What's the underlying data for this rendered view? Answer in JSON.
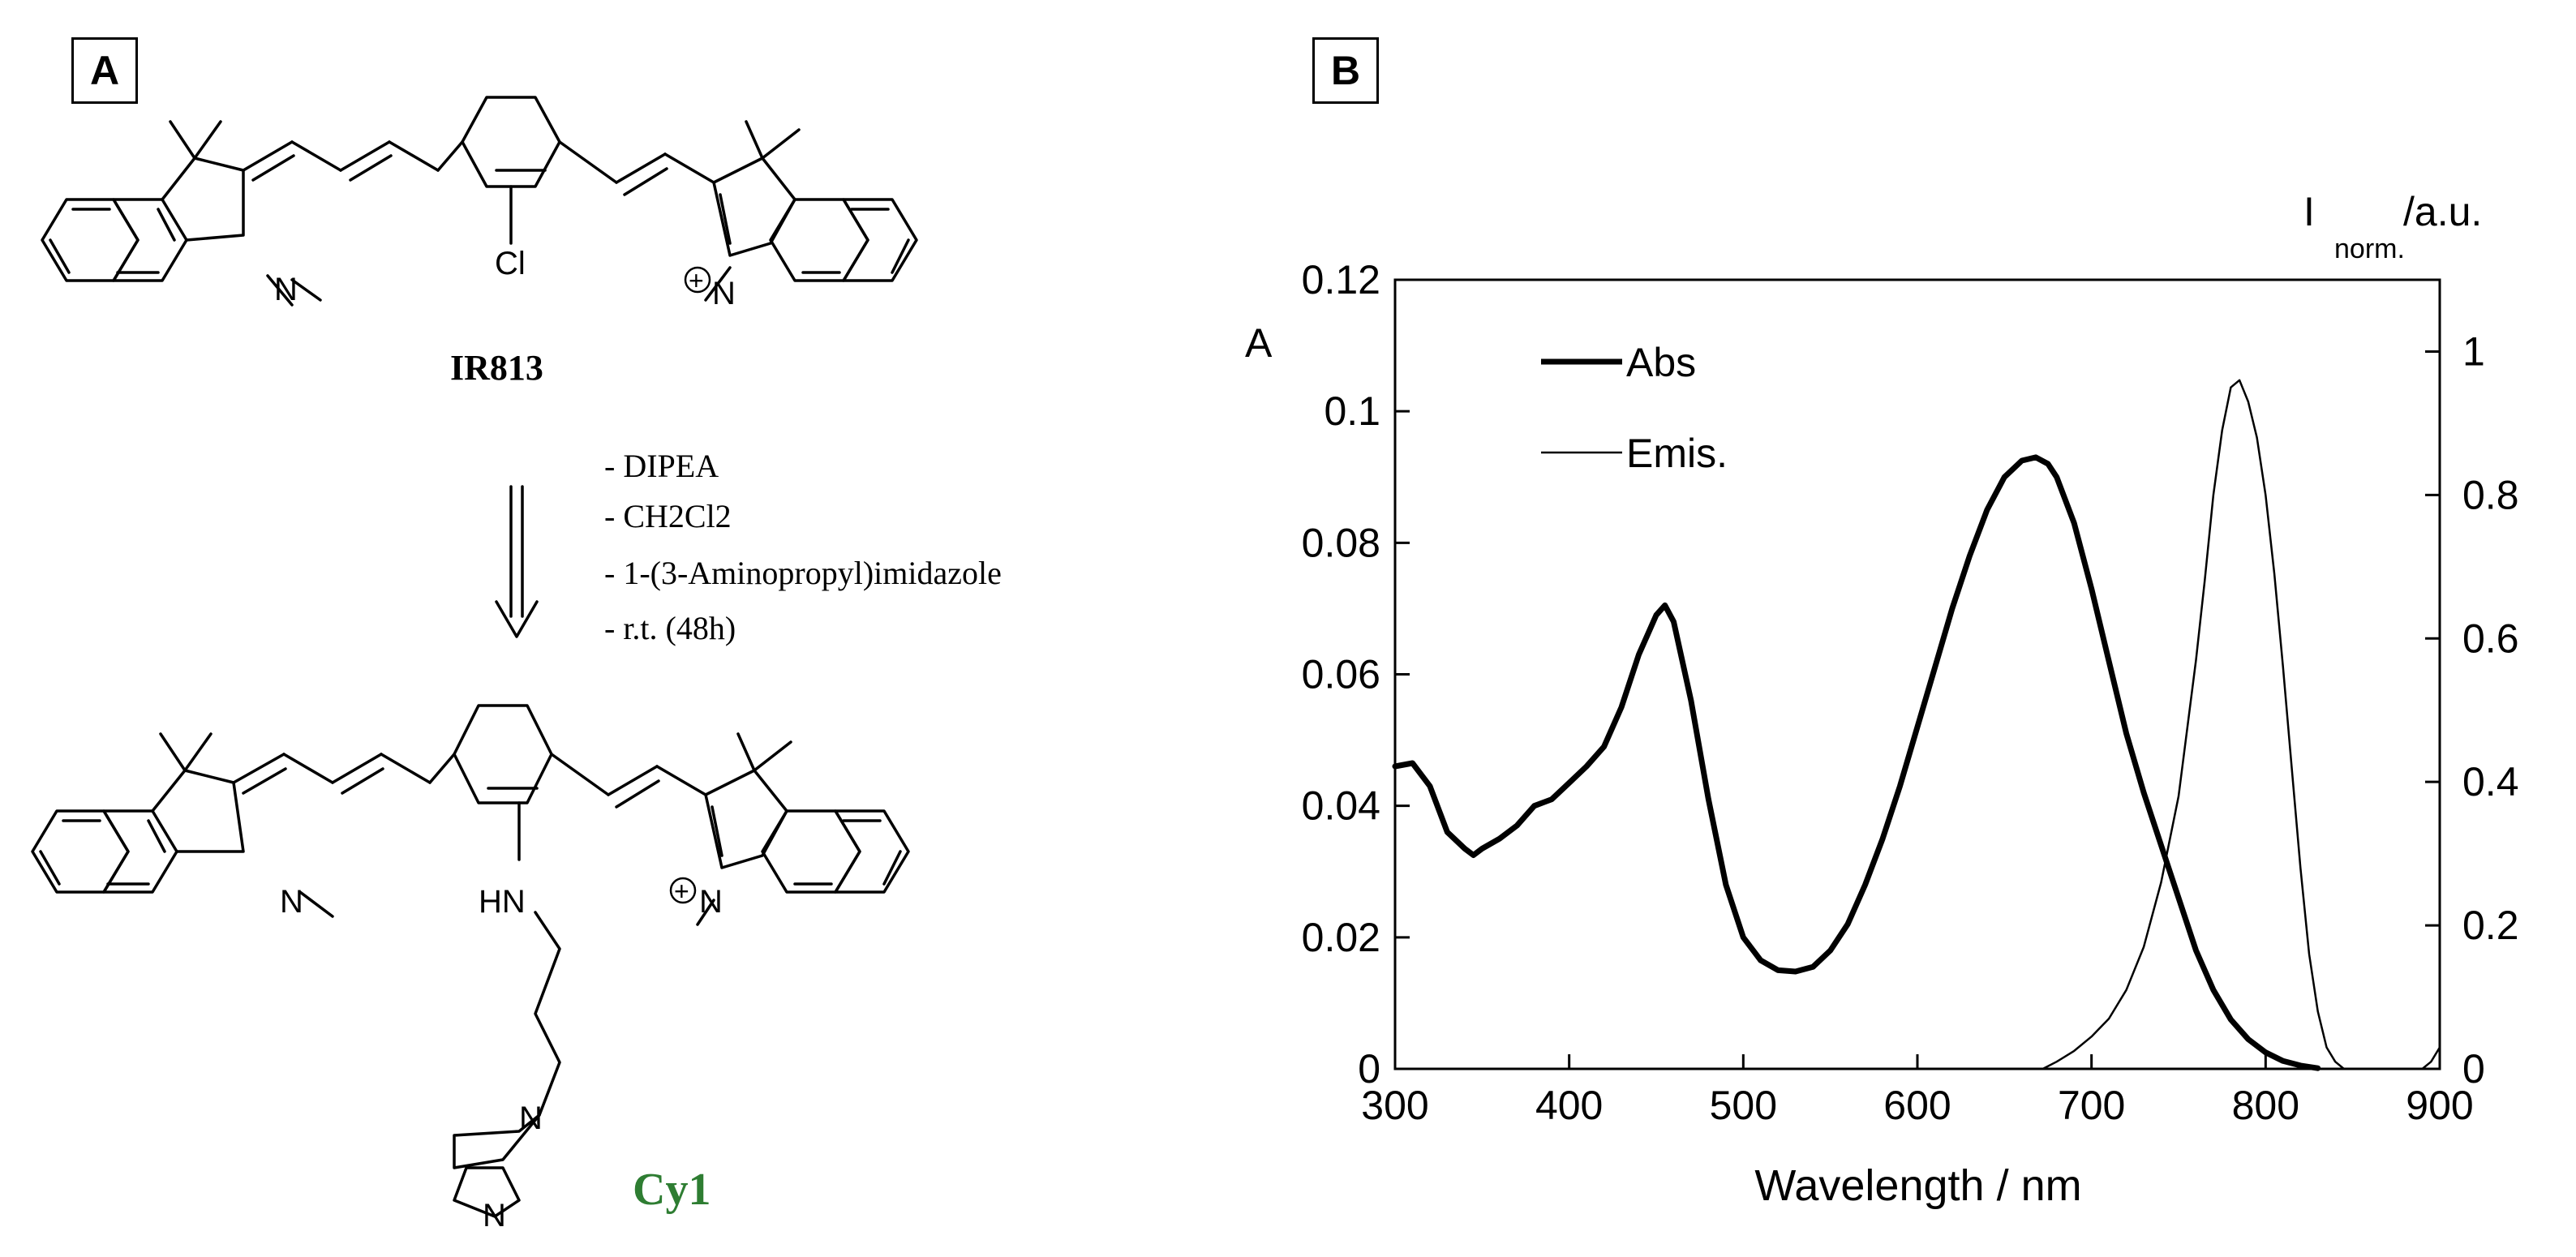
{
  "panel_a": {
    "label": "A",
    "reactant_name": "IR813",
    "product_name": "Cy1",
    "conditions": [
      "- DIPEA",
      "- CH2Cl2",
      "- 1-(3-Aminopropyl)imidazole",
      "- r.t. (48h)"
    ],
    "atoms": {
      "chloro": "Cl",
      "n": "N",
      "amine": "HN",
      "imidazole_n": "N",
      "charge": "+"
    },
    "colors": {
      "product_name": "#2e7d32",
      "ink": "#000000"
    }
  },
  "panel_b": {
    "label": "B",
    "legend": {
      "abs": "Abs",
      "emis": "Emis."
    }
  },
  "chart_data": {
    "type": "line",
    "xlabel": "Wavelength / nm",
    "ylabel": "A",
    "y2label": {
      "main": "I",
      "sub": "norm.",
      "unit": "/a.u."
    },
    "xlim": [
      300,
      900
    ],
    "ylim": [
      0,
      0.12
    ],
    "y2lim": [
      0,
      1.1
    ],
    "xticks": [
      "300",
      "400",
      "500",
      "600",
      "700",
      "800",
      "900"
    ],
    "yticks": [
      "0",
      "0.02",
      "0.04",
      "0.06",
      "0.08",
      "0.1",
      "0.12"
    ],
    "y2ticks": [
      "0",
      "0.2",
      "0.4",
      "0.6",
      "0.8",
      "1"
    ],
    "grid": false,
    "legend_position": "top-left",
    "series": [
      {
        "name": "Abs",
        "axis": "left",
        "x": [
          300,
          310,
          320,
          330,
          340,
          345,
          350,
          360,
          370,
          380,
          390,
          400,
          410,
          420,
          430,
          440,
          450,
          455,
          460,
          470,
          480,
          490,
          500,
          510,
          520,
          530,
          540,
          550,
          560,
          570,
          580,
          590,
          600,
          610,
          620,
          630,
          640,
          650,
          660,
          668,
          675,
          680,
          690,
          700,
          710,
          720,
          730,
          740,
          750,
          760,
          770,
          780,
          790,
          800,
          810,
          820,
          830
        ],
        "values": [
          0.046,
          0.0465,
          0.043,
          0.036,
          0.0335,
          0.0325,
          0.0335,
          0.035,
          0.037,
          0.04,
          0.041,
          0.0435,
          0.046,
          0.049,
          0.055,
          0.063,
          0.069,
          0.0705,
          0.068,
          0.056,
          0.041,
          0.028,
          0.02,
          0.0165,
          0.015,
          0.0148,
          0.0155,
          0.018,
          0.022,
          0.028,
          0.035,
          0.043,
          0.052,
          0.061,
          0.07,
          0.078,
          0.085,
          0.09,
          0.0925,
          0.093,
          0.092,
          0.09,
          0.083,
          0.073,
          0.062,
          0.051,
          0.042,
          0.034,
          0.026,
          0.018,
          0.012,
          0.0075,
          0.0045,
          0.0025,
          0.0012,
          0.0005,
          0.0001
        ]
      },
      {
        "name": "Emis.",
        "axis": "right",
        "x": [
          672,
          680,
          690,
          700,
          710,
          720,
          730,
          740,
          750,
          760,
          765,
          770,
          775,
          780,
          785,
          790,
          795,
          800,
          805,
          810,
          815,
          820,
          825,
          830,
          835,
          840,
          845,
          850,
          860,
          870,
          880,
          890,
          895,
          900
        ],
        "values": [
          0.0,
          0.01,
          0.025,
          0.045,
          0.07,
          0.11,
          0.17,
          0.26,
          0.38,
          0.57,
          0.68,
          0.8,
          0.89,
          0.95,
          0.96,
          0.93,
          0.88,
          0.8,
          0.69,
          0.56,
          0.42,
          0.28,
          0.16,
          0.08,
          0.03,
          0.01,
          0.0,
          0.0,
          0.0,
          0.0,
          0.0,
          0.0,
          0.01,
          0.03
        ]
      }
    ]
  }
}
